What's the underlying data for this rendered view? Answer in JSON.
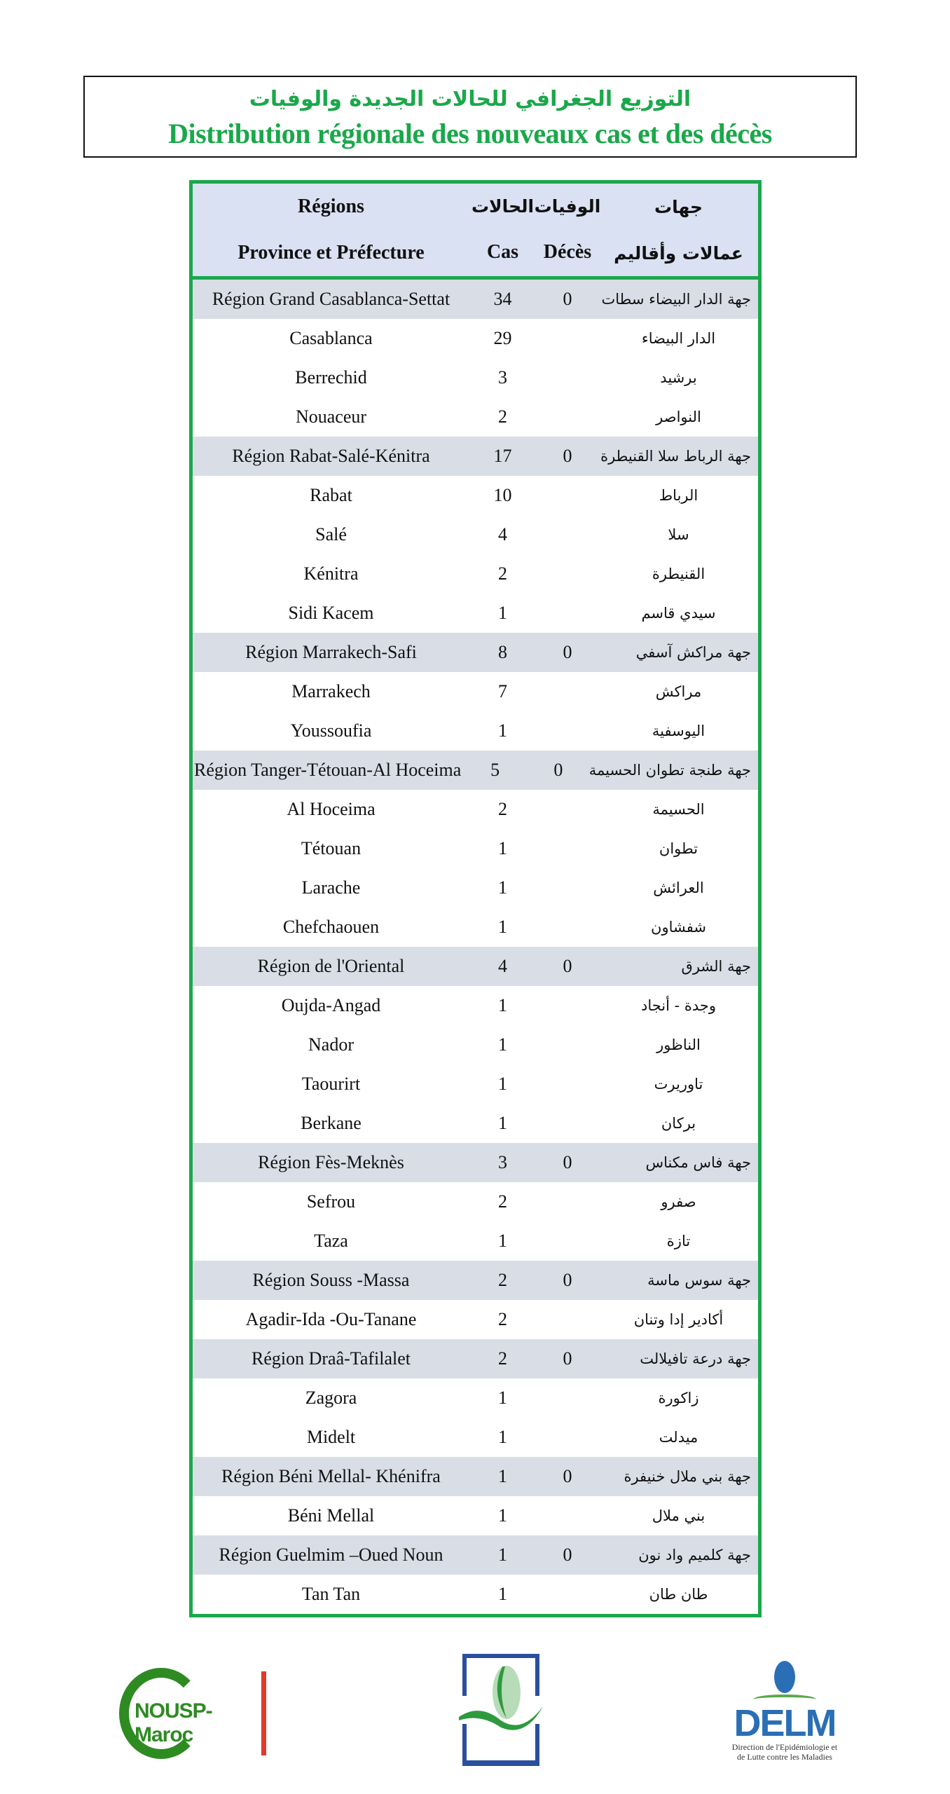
{
  "title": {
    "arabic": "التوزيع الجغرافي للحالات الجديدة والوفيات",
    "french": "Distribution régionale des nouveaux cas et des décès"
  },
  "table": {
    "headers": {
      "regions_fr_line1": "Régions",
      "regions_fr_line2": "Province et Préfecture",
      "cases_ar": "الحالات",
      "cases_fr": "Cas",
      "deaths_ar": "الوفيات",
      "deaths_fr": "Décès",
      "regions_ar_line1": "جهات",
      "regions_ar_line2": "عمالات وأقاليم"
    },
    "rows": [
      {
        "type": "region",
        "name": "Région Grand Casablanca-Settat",
        "cases": "34",
        "deaths": "0",
        "name_ar": "جهة الدار البيضاء سطات"
      },
      {
        "type": "province",
        "name": "Casablanca",
        "cases": "29",
        "deaths": "",
        "name_ar": "الدار البيضاء"
      },
      {
        "type": "province",
        "name": "Berrechid",
        "cases": "3",
        "deaths": "",
        "name_ar": "برشيد"
      },
      {
        "type": "province",
        "name": "Nouaceur",
        "cases": "2",
        "deaths": "",
        "name_ar": "النواصر"
      },
      {
        "type": "region",
        "name": "Région Rabat-Salé-Kénitra",
        "cases": "17",
        "deaths": "0",
        "name_ar": "جهة الرباط سلا القنيطرة"
      },
      {
        "type": "province",
        "name": "Rabat",
        "cases": "10",
        "deaths": "",
        "name_ar": "الرباط"
      },
      {
        "type": "province",
        "name": "Salé",
        "cases": "4",
        "deaths": "",
        "name_ar": "سلا"
      },
      {
        "type": "province",
        "name": "Kénitra",
        "cases": "2",
        "deaths": "",
        "name_ar": "القنيطرة"
      },
      {
        "type": "province",
        "name": "Sidi Kacem",
        "cases": "1",
        "deaths": "",
        "name_ar": "سيدي قاسم"
      },
      {
        "type": "region",
        "name": "Région Marrakech-Safi",
        "cases": "8",
        "deaths": "0",
        "name_ar": "جهة مراكش آسفي"
      },
      {
        "type": "province",
        "name": "Marrakech",
        "cases": "7",
        "deaths": "",
        "name_ar": "مراكش"
      },
      {
        "type": "province",
        "name": "Youssoufia",
        "cases": "1",
        "deaths": "",
        "name_ar": "اليوسفية"
      },
      {
        "type": "region",
        "name": "Région Tanger-Tétouan-Al Hoceima",
        "cases": "5",
        "deaths": "0",
        "name_ar": "جهة طنجة تطوان الحسيمة"
      },
      {
        "type": "province",
        "name": "Al Hoceima",
        "cases": "2",
        "deaths": "",
        "name_ar": "الحسيمة"
      },
      {
        "type": "province",
        "name": "Tétouan",
        "cases": "1",
        "deaths": "",
        "name_ar": "تطوان"
      },
      {
        "type": "province",
        "name": "Larache",
        "cases": "1",
        "deaths": "",
        "name_ar": "العرائش"
      },
      {
        "type": "province",
        "name": "Chefchaouen",
        "cases": "1",
        "deaths": "",
        "name_ar": "شفشاون"
      },
      {
        "type": "region",
        "name": "Région de l'Oriental",
        "cases": "4",
        "deaths": "0",
        "name_ar": "جهة الشرق"
      },
      {
        "type": "province",
        "name": "Oujda-Angad",
        "cases": "1",
        "deaths": "",
        "name_ar": "وجدة - أنجاد"
      },
      {
        "type": "province",
        "name": "Nador",
        "cases": "1",
        "deaths": "",
        "name_ar": "الناظور"
      },
      {
        "type": "province",
        "name": "Taourirt",
        "cases": "1",
        "deaths": "",
        "name_ar": "تاوريرت"
      },
      {
        "type": "province",
        "name": "Berkane",
        "cases": "1",
        "deaths": "",
        "name_ar": "بركان"
      },
      {
        "type": "region",
        "name": "Région Fès-Meknès",
        "cases": "3",
        "deaths": "0",
        "name_ar": "جهة فاس مكناس"
      },
      {
        "type": "province",
        "name": "Sefrou",
        "cases": "2",
        "deaths": "",
        "name_ar": "صفرو"
      },
      {
        "type": "province",
        "name": "Taza",
        "cases": "1",
        "deaths": "",
        "name_ar": "تازة"
      },
      {
        "type": "region",
        "name": "Région Souss -Massa",
        "cases": "2",
        "deaths": "0",
        "name_ar": "جهة سوس ماسة"
      },
      {
        "type": "province",
        "name": "Agadir-Ida -Ou-Tanane",
        "cases": "2",
        "deaths": "",
        "name_ar": "أكادير إدا وتنان"
      },
      {
        "type": "region",
        "name": "Région Draâ-Tafilalet",
        "cases": "2",
        "deaths": "0",
        "name_ar": "جهة درعة تافيلالت"
      },
      {
        "type": "province",
        "name": "Zagora",
        "cases": "1",
        "deaths": "",
        "name_ar": "زاكورة"
      },
      {
        "type": "province",
        "name": "Midelt",
        "cases": "1",
        "deaths": "",
        "name_ar": "ميدلت"
      },
      {
        "type": "region",
        "name": "Région Béni Mellal- Khénifra",
        "cases": "1",
        "deaths": "0",
        "name_ar": "جهة بني ملال خنيفرة"
      },
      {
        "type": "province",
        "name": "Béni Mellal",
        "cases": "1",
        "deaths": "",
        "name_ar": "بني ملال"
      },
      {
        "type": "region",
        "name": "Région Guelmim –Oued Noun",
        "cases": "1",
        "deaths": "0",
        "name_ar": "جهة كلميم واد نون"
      },
      {
        "type": "province",
        "name": "Tan Tan",
        "cases": "1",
        "deaths": "",
        "name_ar": "طان طان"
      }
    ]
  },
  "colors": {
    "accent_green": "#1aa84a",
    "header_bg": "#d9e1f2",
    "region_row_bg": "#d9dde6"
  },
  "logos": {
    "nousp": "NOUSP-Maroc",
    "delm": "DELM",
    "delm_subtitle": "Direction de l'Epidémiologie et de Lutte contre les Maladies"
  }
}
